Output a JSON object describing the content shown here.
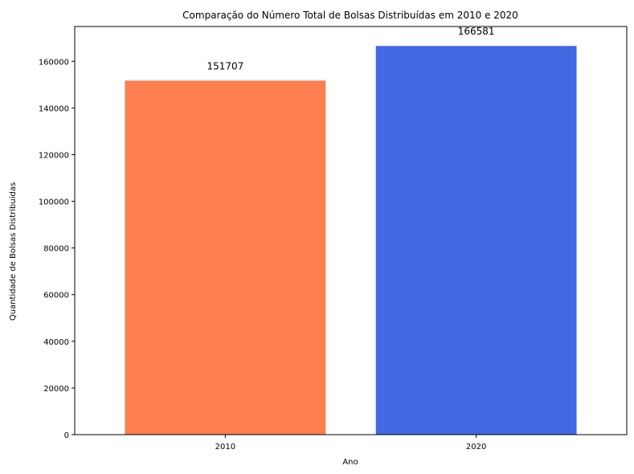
{
  "chart_data": {
    "type": "bar",
    "title": "Comparação do Número Total de Bolsas Distribuídas em 2010 e 2020",
    "xlabel": "Ano",
    "ylabel": "Quantidade de Bolsas Distribuídas",
    "categories": [
      "2010",
      "2020"
    ],
    "values": [
      151707,
      166581
    ],
    "data_labels": [
      "151707",
      "166581"
    ],
    "colors": [
      "#FF7F50",
      "#4169E1"
    ],
    "ylim": [
      0,
      174910
    ],
    "yticks": [
      0,
      20000,
      40000,
      60000,
      80000,
      100000,
      120000,
      140000,
      160000
    ],
    "ytick_labels": [
      "0",
      "20000",
      "40000",
      "60000",
      "80000",
      "100000",
      "120000",
      "140000",
      "160000"
    ],
    "grid": false,
    "legend": false
  }
}
